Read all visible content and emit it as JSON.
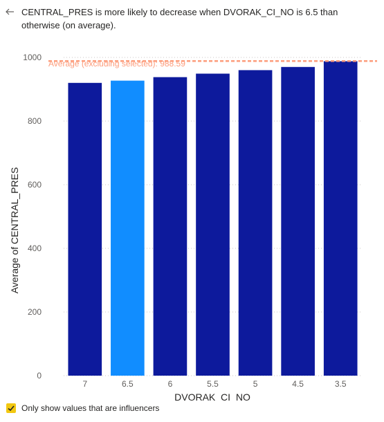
{
  "header": {
    "back_icon": "arrow-left-icon",
    "text": "CENTRAL_PRES is more likely to decrease when DVORAK_CI_NO is 6.5 than otherwise (on average)."
  },
  "footer": {
    "checkbox_checked": true,
    "checkbox_icon": "checkmark-icon",
    "label": "Only show values that are influencers"
  },
  "colors": {
    "bar": "#0d1a9c",
    "bar_selected": "#118dff",
    "reference_line": "#fd9d7c",
    "checkbox": "#f2c811"
  },
  "chart_data": {
    "type": "bar",
    "xlabel": "DVORAK_CI_NO",
    "ylabel": "Average of CENTRAL_PRES",
    "categories": [
      "7",
      "6.5",
      "6",
      "5.5",
      "5",
      "4.5",
      "3.5"
    ],
    "values": [
      920,
      927,
      938,
      949,
      960,
      970,
      988
    ],
    "selected_category": "6.5",
    "ylim": [
      0,
      1000
    ],
    "yticks": [
      0,
      200,
      400,
      600,
      800,
      1000
    ],
    "grid": true,
    "reference_line": {
      "label": "Average (excluding selected): 988.59",
      "value": 988.59
    }
  }
}
